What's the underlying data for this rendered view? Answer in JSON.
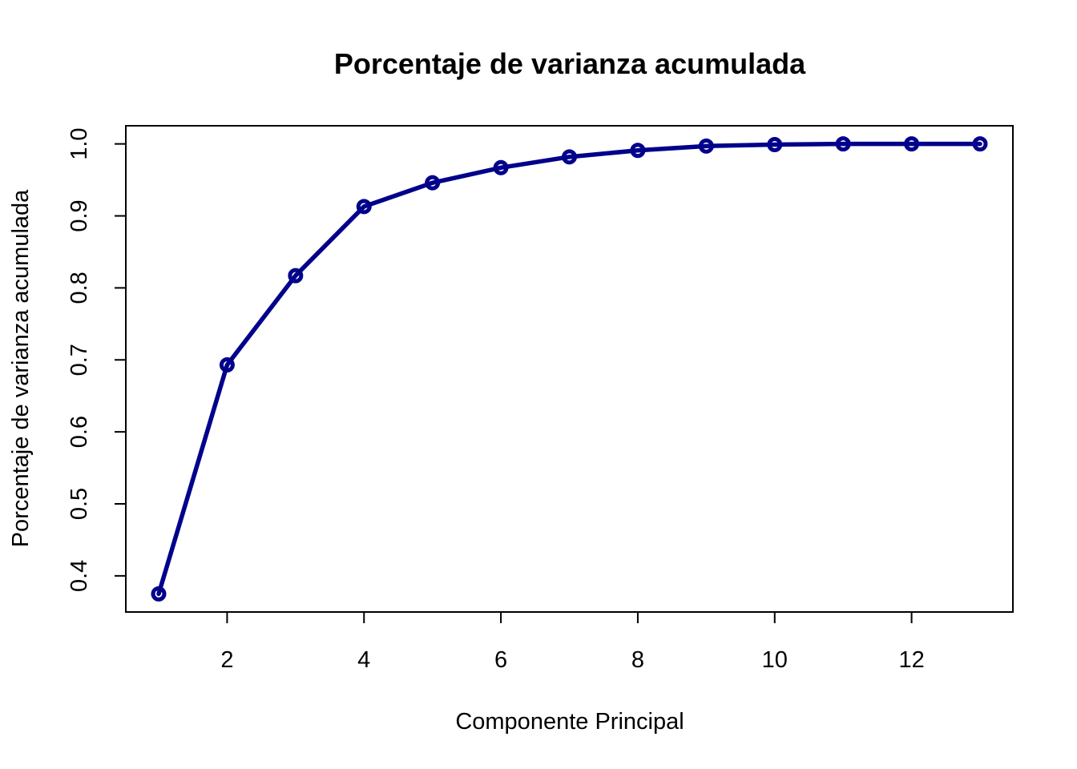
{
  "chart_data": {
    "type": "line",
    "title": "Porcentaje de varianza acumulada",
    "xlabel": "Componente Principal",
    "ylabel": "Porcentaje de varianza acumulada",
    "x": [
      1,
      2,
      3,
      4,
      5,
      6,
      7,
      8,
      9,
      10,
      11,
      12,
      13
    ],
    "series": [
      {
        "values": [
          0.375,
          0.693,
          0.817,
          0.913,
          0.946,
          0.967,
          0.982,
          0.991,
          0.997,
          0.999,
          1.0,
          1.0,
          1.0
        ],
        "color": "#00008B",
        "marker": "open-circle"
      }
    ],
    "xlim": [
      0.52,
      13.48
    ],
    "ylim": [
      0.3498,
      1.0252
    ],
    "xticks": [
      2,
      4,
      6,
      8,
      10,
      12
    ],
    "yticks": [
      0.4,
      0.5,
      0.6,
      0.7,
      0.8,
      0.9,
      1.0
    ],
    "xtick_labels": [
      "2",
      "4",
      "6",
      "8",
      "10",
      "12"
    ],
    "ytick_labels": [
      "0.4",
      "0.5",
      "0.6",
      "0.7",
      "0.8",
      "0.9",
      "1.0"
    ],
    "grid": false,
    "legend": "none"
  }
}
